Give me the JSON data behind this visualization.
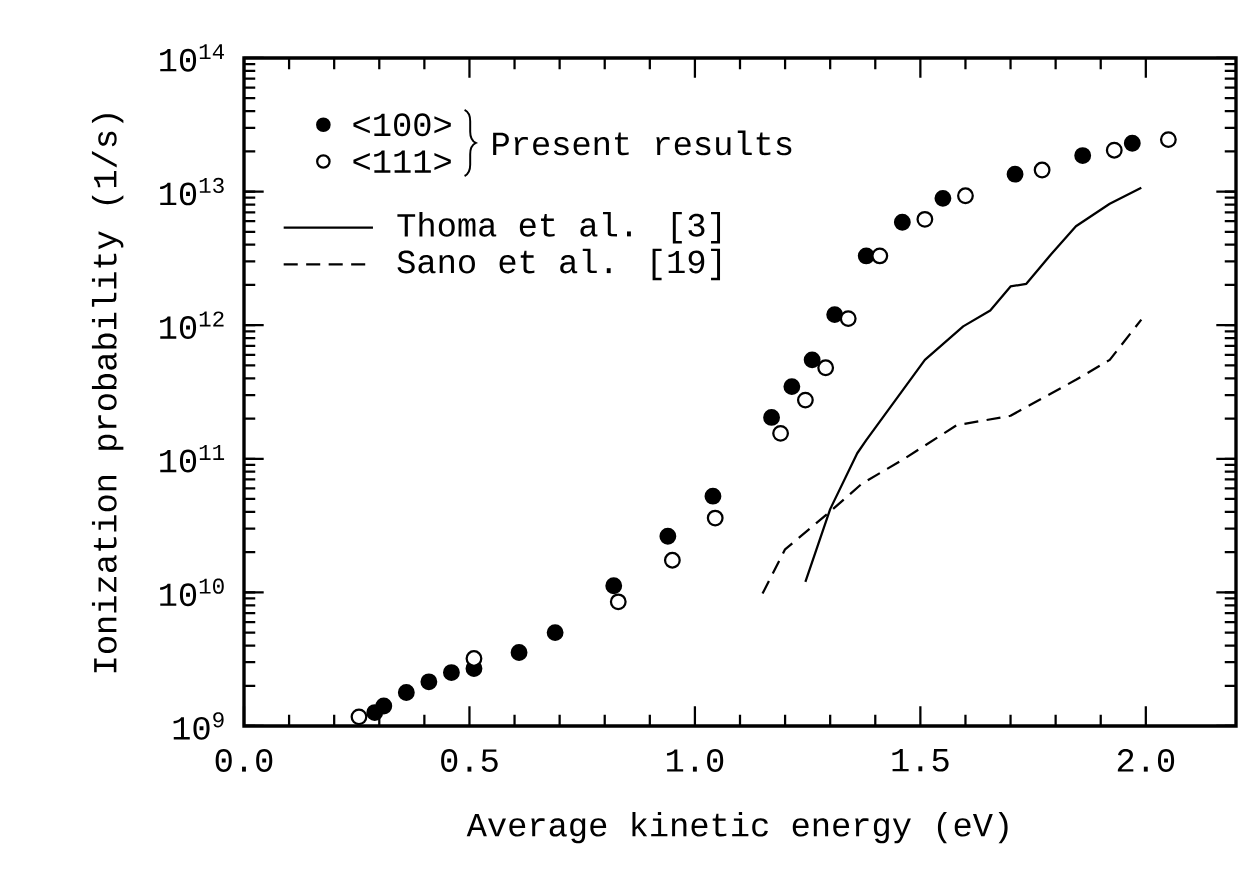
{
  "chart_data": {
    "type": "scatter",
    "xlabel": "Average kinetic energy (eV)",
    "ylabel": "Ionization probability (1/s)",
    "log": "y",
    "grid": false,
    "legend": "top left",
    "annotations": [
      "Present results"
    ],
    "xlim": [
      0,
      2.2
    ],
    "ylim": [
      1000000000.0,
      100000000000000.0
    ],
    "xticks": [
      {
        "value": 0,
        "label": "0.0"
      },
      {
        "value": 0.5,
        "label": "0.5"
      },
      {
        "value": 1,
        "label": "1.0"
      },
      {
        "value": 1.5,
        "label": "1.5"
      },
      {
        "value": 2,
        "label": "2.0"
      }
    ],
    "yticks": [
      {
        "value": 1000000000.0,
        "label": "10$^{9}$"
      },
      {
        "value": 10000000000.0,
        "label": "10$^{10}$"
      },
      {
        "value": 100000000000.0,
        "label": "10$^{11}$"
      },
      {
        "value": 1000000000000.0,
        "label": "10$^{12}$"
      },
      {
        "value": 10000000000000.0,
        "label": "10$^{13}$"
      },
      {
        "value": 100000000000000.0,
        "label": "10$^{14}$"
      }
    ],
    "series": [
      {
        "name": "<100>",
        "marker": "circle",
        "color": "#000000",
        "x": [
          0.29,
          0.31,
          0.36,
          0.41,
          0.46,
          0.51,
          0.61,
          0.69,
          0.82,
          0.94,
          1.04,
          1.17,
          1.215,
          1.26,
          1.31,
          1.38,
          1.46,
          1.55,
          1.71,
          1.86,
          1.97
        ],
        "values": [
          1260000000.0,
          1410000000.0,
          1780000000.0,
          2140000000.0,
          2510000000.0,
          2690000000.0,
          3550000000.0,
          5000000000.0,
          11200000000.0,
          26300000000.0,
          52500000000.0,
          204000000000.0,
          347000000000.0,
          550000000000.0,
          1200000000000.0,
          3300000000000.0,
          5900000000000.0,
          8900000000000.0,
          13500000000000.0,
          18600000000000.0,
          23000000000000.0
        ]
      },
      {
        "name": "<111>",
        "marker": "circle",
        "color": "#ffffff",
        "x": [
          0.255,
          0.51,
          0.83,
          0.95,
          1.045,
          1.19,
          1.245,
          1.29,
          1.34,
          1.41,
          1.51,
          1.6,
          1.77,
          1.93,
          2.05
        ],
        "values": [
          1170000000.0,
          3200000000.0,
          8500000000.0,
          17400000000.0,
          36000000000.0,
          155000000000.0,
          275000000000.0,
          480000000000.0,
          1120000000000.0,
          3300000000000.0,
          6200000000000.0,
          9300000000000.0,
          14500000000000.0,
          20400000000000.0,
          24500000000000.0
        ]
      },
      {
        "name": "Thoma et al. [3]",
        "type": "line",
        "marker": "none",
        "line_style": "solid",
        "color": "#000000",
        "x": [
          1.245,
          1.3,
          1.36,
          1.38,
          1.51,
          1.595,
          1.655,
          1.7,
          1.735,
          1.79,
          1.845,
          1.92,
          1.99
        ],
        "values": [
          12000000000.0,
          42000000000.0,
          110000000000.0,
          138000000000.0,
          550000000000.0,
          980000000000.0,
          1290000000000.0,
          1950000000000.0,
          2040000000000.0,
          3400000000000.0,
          5500000000000.0,
          8100000000000.0,
          10700000000000.0
        ]
      },
      {
        "name": "Sano et al. [19]",
        "type": "line",
        "marker": "none",
        "line_style": "dashed",
        "color": "#000000",
        "x": [
          1.15,
          1.2,
          1.295,
          1.37,
          1.46,
          1.58,
          1.7,
          1.845,
          1.92,
          1.99
        ],
        "values": [
          9800000000.0,
          21000000000.0,
          39000000000.0,
          65000000000.0,
          98000000000.0,
          178000000000.0,
          210000000000.0,
          390000000000.0,
          550000000000.0,
          1100000000000.0
        ]
      }
    ]
  }
}
